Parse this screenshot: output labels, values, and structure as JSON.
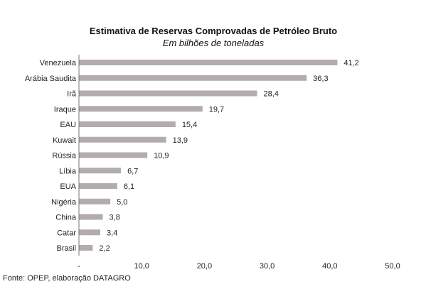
{
  "chart_data": {
    "type": "bar",
    "orientation": "horizontal",
    "title": "Estimativa de Reservas Comprovadas de Petróleo Bruto",
    "subtitle": "Em bilhões de toneladas",
    "categories": [
      "Venezuela",
      "Arábia Saudita",
      "Irã",
      "Iraque",
      "EAU",
      "Kuwait",
      "Rússia",
      "Líbia",
      "EUA",
      "Nigéria",
      "China",
      "Catar",
      "Brasil"
    ],
    "values": [
      41.2,
      36.3,
      28.4,
      19.7,
      15.4,
      13.9,
      10.9,
      6.7,
      6.1,
      5.0,
      3.8,
      3.4,
      2.2
    ],
    "value_labels": [
      "41,2",
      "36,3",
      "28,4",
      "19,7",
      "15,4",
      "13,9",
      "10,9",
      "6,7",
      "6,1",
      "5,0",
      "3,8",
      "3,4",
      "2,2"
    ],
    "xlim": [
      0,
      50
    ],
    "x_ticks": [
      0,
      10,
      20,
      30,
      40,
      50
    ],
    "x_tick_labels": [
      "-",
      "10,0",
      "20,0",
      "30,0",
      "40,0",
      "50,0"
    ],
    "grid": false,
    "bar_color": "#b3acac",
    "source": "Fonte: OPEP, elaboração DATAGRO"
  }
}
